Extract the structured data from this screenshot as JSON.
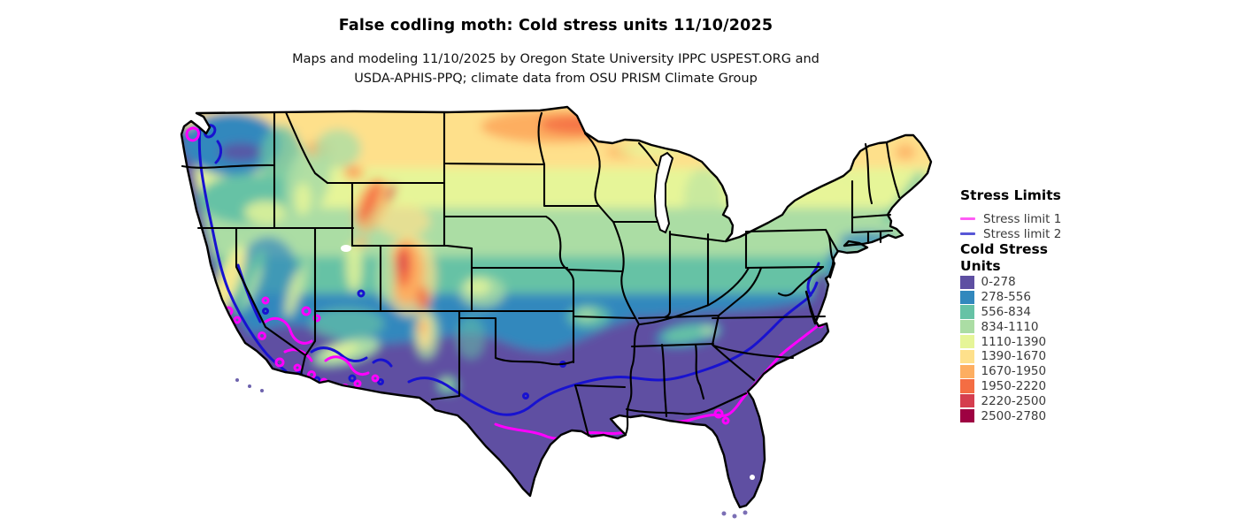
{
  "figure": {
    "title": "False codling moth: Cold stress units 11/10/2025",
    "subtitle_lines": [
      "Maps and modeling 11/10/2025 by Oregon State University IPPC USPEST.ORG and",
      "USDA-APHIS-PPQ; climate data from OSU PRISM Climate Group"
    ]
  },
  "legend": {
    "stress_limits_title": "Stress Limits",
    "stress_limits": [
      {
        "label": "Stress limit 1",
        "color": "#ff5cf5"
      },
      {
        "label": "Stress limit 2",
        "color": "#5756d6"
      }
    ],
    "cold_stress_title_lines": [
      "Cold Stress",
      "Units"
    ],
    "classes": [
      {
        "label": "0-278",
        "color": "#5e4fa2"
      },
      {
        "label": "278-556",
        "color": "#3288bd"
      },
      {
        "label": "556-834",
        "color": "#66c2a5"
      },
      {
        "label": "834-1110",
        "color": "#abdda4"
      },
      {
        "label": "1110-1390",
        "color": "#e6f598"
      },
      {
        "label": "1390-1670",
        "color": "#fee08b"
      },
      {
        "label": "1670-1950",
        "color": "#fdae61"
      },
      {
        "label": "1950-2220",
        "color": "#f46d43"
      },
      {
        "label": "2220-2500",
        "color": "#d53e4f"
      },
      {
        "label": "2500-2780",
        "color": "#9e0142"
      }
    ]
  },
  "map": {
    "region": "contiguous-united-states",
    "line_colors": {
      "stress_limit_1": "#ff00ff",
      "stress_limit_2": "#1812d0"
    }
  }
}
